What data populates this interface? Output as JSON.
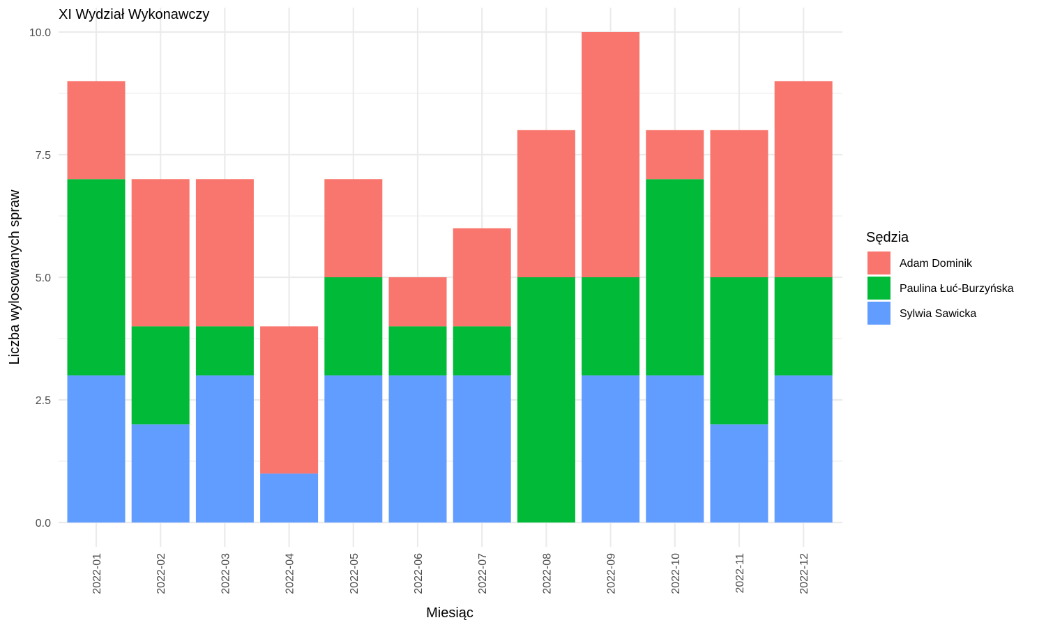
{
  "chart_data": {
    "type": "bar",
    "stacked": true,
    "title": "XI Wydział Wykonawczy",
    "xlabel": "Miesiąc",
    "ylabel": "Liczba wylosowanych spraw",
    "categories": [
      "2022-01",
      "2022-02",
      "2022-03",
      "2022-04",
      "2022-05",
      "2022-06",
      "2022-07",
      "2022-08",
      "2022-09",
      "2022-10",
      "2022-11",
      "2022-12"
    ],
    "series": [
      {
        "name": "Sylwia Sawicka",
        "color": "#619CFF",
        "values": [
          3,
          2,
          3,
          1,
          3,
          3,
          3,
          0,
          3,
          3,
          2,
          3
        ]
      },
      {
        "name": "Paulina Łuć-Burzyńska",
        "color": "#00BA38",
        "values": [
          4,
          2,
          1,
          0,
          2,
          1,
          1,
          5,
          2,
          4,
          3,
          2
        ]
      },
      {
        "name": "Adam Dominik",
        "color": "#F8766D",
        "values": [
          2,
          3,
          3,
          3,
          2,
          1,
          2,
          3,
          5,
          1,
          3,
          4
        ]
      }
    ],
    "ylim": [
      0,
      10
    ],
    "yticks": [
      0,
      2.5,
      5,
      7.5,
      10
    ],
    "ytick_labels": [
      "0.0",
      "2.5",
      "5.0",
      "7.5",
      "10.0"
    ],
    "grid": true,
    "legend": {
      "title": "Sędzia",
      "position": "right",
      "order": [
        "Adam Dominik",
        "Paulina Łuć-Burzyńska",
        "Sylwia Sawicka"
      ]
    }
  }
}
